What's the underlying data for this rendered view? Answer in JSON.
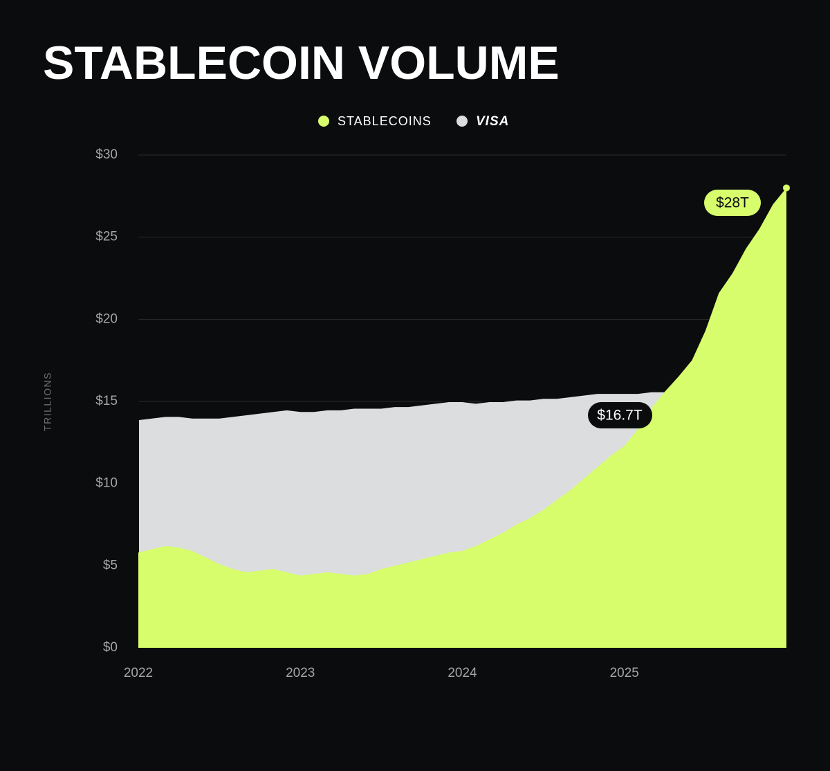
{
  "chart_data": {
    "type": "area",
    "title": "STABLECOIN VOLUME",
    "y_label": "TRILLIONS",
    "x": [
      2022.0,
      2022.083,
      2022.167,
      2022.25,
      2022.333,
      2022.417,
      2022.5,
      2022.583,
      2022.667,
      2022.75,
      2022.833,
      2022.917,
      2023.0,
      2023.083,
      2023.167,
      2023.25,
      2023.333,
      2023.417,
      2023.5,
      2023.583,
      2023.667,
      2023.75,
      2023.833,
      2023.917,
      2024.0,
      2024.083,
      2024.167,
      2024.25,
      2024.333,
      2024.417,
      2024.5,
      2024.583,
      2024.667,
      2024.75,
      2024.833,
      2024.917,
      2025.0,
      2025.083,
      2025.167,
      2025.25,
      2025.333,
      2025.417,
      2025.5,
      2025.583,
      2025.667,
      2025.75,
      2025.833,
      2025.917,
      2026.0
    ],
    "series": [
      {
        "name": "VISA",
        "color": "#dcdddf",
        "values": [
          13.9,
          14.0,
          14.1,
          14.1,
          14.0,
          14.0,
          14.0,
          14.1,
          14.2,
          14.3,
          14.4,
          14.5,
          14.4,
          14.4,
          14.5,
          14.5,
          14.6,
          14.6,
          14.6,
          14.7,
          14.7,
          14.8,
          14.9,
          15.0,
          15.0,
          14.9,
          15.0,
          15.0,
          15.1,
          15.1,
          15.2,
          15.2,
          15.3,
          15.4,
          15.5,
          15.5,
          15.5,
          15.5,
          15.6,
          15.6,
          15.7,
          15.8,
          15.9,
          16.0,
          16.2,
          16.3,
          16.5,
          16.6,
          16.7
        ]
      },
      {
        "name": "STABLECOINS",
        "color": "#d7fd6c",
        "values": [
          5.8,
          6.0,
          6.2,
          6.1,
          5.9,
          5.5,
          5.1,
          4.8,
          4.6,
          4.7,
          4.8,
          4.6,
          4.4,
          4.5,
          4.6,
          4.5,
          4.4,
          4.5,
          4.8,
          5.0,
          5.2,
          5.4,
          5.6,
          5.8,
          5.9,
          6.2,
          6.6,
          7.0,
          7.5,
          7.9,
          8.4,
          9.0,
          9.6,
          10.3,
          11.0,
          11.7,
          12.3,
          13.3,
          14.6,
          15.6,
          16.5,
          17.5,
          19.3,
          21.6,
          22.8,
          24.3,
          25.5,
          27.0,
          28.0
        ]
      }
    ],
    "annotations": [
      "$28T",
      "$16.7T"
    ],
    "xlim": [
      2022,
      2026
    ],
    "xticks": [
      2022,
      2023,
      2024,
      2025
    ],
    "ylim": [
      0,
      30
    ],
    "yticks": [
      {
        "value": 0,
        "label": "$0"
      },
      {
        "value": 5,
        "label": "$5"
      },
      {
        "value": 10,
        "label": "$10"
      },
      {
        "value": 15,
        "label": "$15"
      },
      {
        "value": 20,
        "label": "$20"
      },
      {
        "value": 25,
        "label": "$25"
      },
      {
        "value": 30,
        "label": "$30"
      }
    ],
    "grid": true,
    "legend": "top"
  }
}
